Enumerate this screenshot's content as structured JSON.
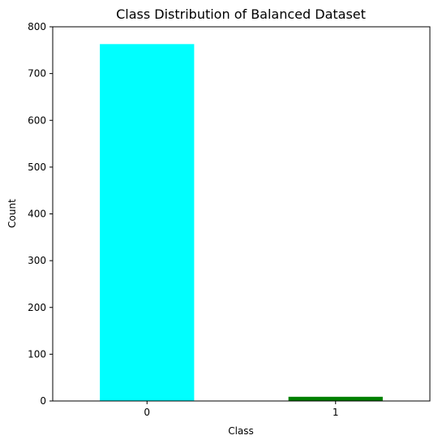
{
  "chart_data": {
    "type": "bar",
    "title": "Class Distribution of Balanced Dataset",
    "xlabel": "Class",
    "ylabel": "Count",
    "categories": [
      "0",
      "1"
    ],
    "values": [
      763,
      9
    ],
    "colors": [
      "#00ffff",
      "#008000"
    ],
    "ylim": [
      0,
      800
    ],
    "yticks": [
      0,
      100,
      200,
      300,
      400,
      500,
      600,
      700,
      800
    ],
    "grid": false,
    "legend": "none"
  }
}
